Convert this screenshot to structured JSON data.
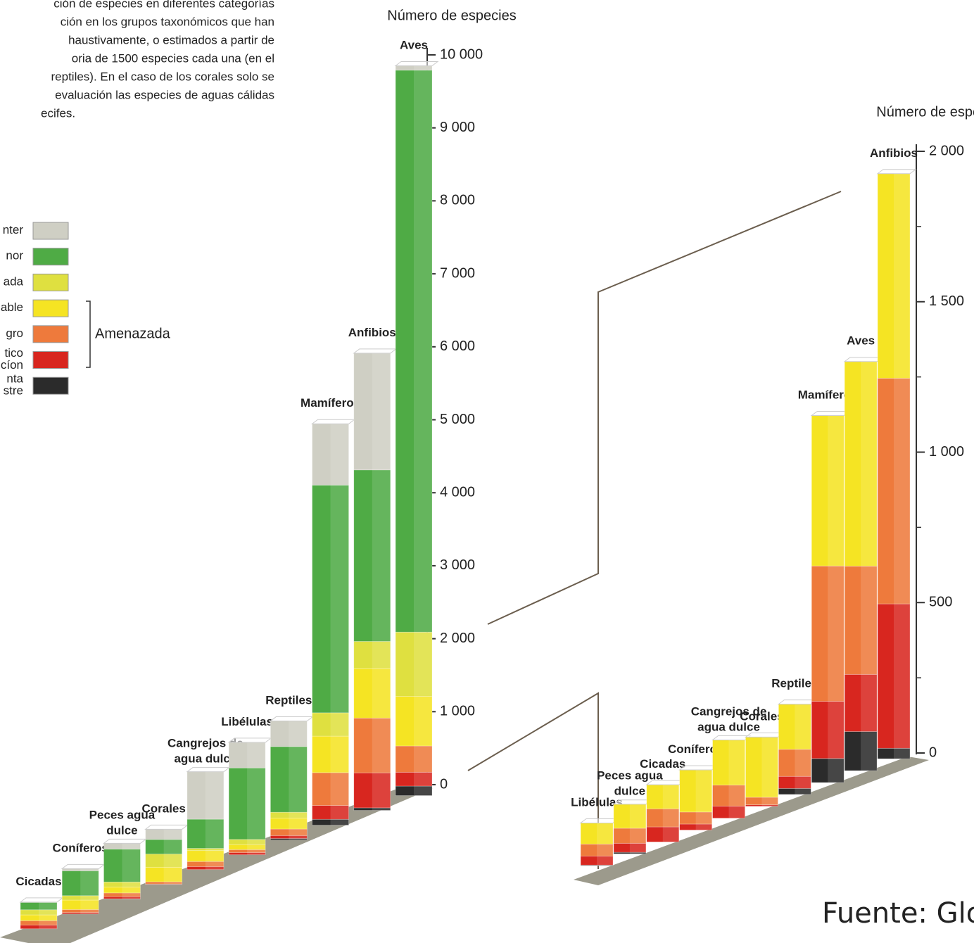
{
  "intro": [
    "ción de especies en diferentes categorías",
    "ción en los grupos taxonómicos que han",
    "haustivamente, o estimados a partir de",
    "oria de 1500 especies cada una (en el",
    "reptiles). En el caso de los corales solo se",
    "evaluación las especies de aguas cálidas",
    "ecifes."
  ],
  "bracket_label": "Amenazada",
  "source": "Fuente: Global",
  "chart_data": [
    {
      "type": "stacked-bar",
      "ylabel": "Número de especies",
      "categories": [
        "Cicadas",
        "Coníferos",
        "Peces agua dulce",
        "Corales",
        "Cangrejos de agua dulce",
        "Libélulas",
        "Reptiles",
        "Mamíferos",
        "Anfibios",
        "Aves"
      ],
      "series": [
        {
          "name": "nta stre",
          "color": "#2b2b2b",
          "values": [
            0,
            0,
            5,
            0,
            0,
            0,
            20,
            80,
            35,
            130
          ]
        },
        {
          "name": "tico cíon",
          "color": "#d8261f",
          "values": [
            50,
            20,
            30,
            5,
            40,
            30,
            40,
            190,
            480,
            190
          ]
        },
        {
          "name": "gro",
          "color": "#ee7a3c",
          "values": [
            60,
            40,
            50,
            30,
            70,
            40,
            90,
            450,
            750,
            360
          ]
        },
        {
          "name": "able",
          "color": "#f5e423",
          "values": [
            80,
            130,
            80,
            200,
            150,
            70,
            150,
            500,
            680,
            680
          ]
        },
        {
          "name": "ada",
          "color": "#dfe040",
          "values": [
            70,
            60,
            70,
            180,
            30,
            70,
            80,
            320,
            370,
            880
          ]
        },
        {
          "name": "nor",
          "color": "#4fab45",
          "values": [
            100,
            340,
            450,
            200,
            400,
            980,
            900,
            3120,
            2350,
            7700
          ]
        },
        {
          "name": "nter",
          "color": "#cfcfc4",
          "values": [
            5,
            30,
            80,
            140,
            650,
            350,
            350,
            840,
            1600,
            60
          ]
        }
      ],
      "ylim": [
        0,
        10000
      ],
      "yticks": [
        0,
        {
          "value": 1000,
          "label": "1 000"
        },
        {
          "value": 2000,
          "label": "2 000"
        },
        {
          "value": 3000,
          "label": "3 000"
        },
        {
          "value": 4000,
          "label": "4 000"
        },
        {
          "value": 5000,
          "label": "5 000"
        },
        {
          "value": 6000,
          "label": "6 000"
        },
        {
          "value": 7000,
          "label": "7 000"
        },
        {
          "value": 8000,
          "label": "8 000"
        },
        {
          "value": 9000,
          "label": "9 000"
        },
        {
          "value": 10000,
          "label": "10 000"
        }
      ],
      "legend": "left"
    },
    {
      "type": "stacked-bar",
      "ylabel": "Número de especies",
      "categories": [
        "Libélulas",
        "Peces agua dulce",
        "Cicadas",
        "Coníferos",
        "Cangrejos de agua dulce",
        "Corales",
        "Reptiles",
        "Mamíferos",
        "Aves",
        "Anfibios"
      ],
      "series": [
        {
          "color": "#2b2b2b",
          "values": [
            2,
            5,
            0,
            0,
            0,
            0,
            20,
            80,
            130,
            35
          ]
        },
        {
          "color": "#d8261f",
          "values": [
            30,
            30,
            50,
            20,
            40,
            5,
            40,
            190,
            190,
            480
          ]
        },
        {
          "color": "#ee7a3c",
          "values": [
            40,
            50,
            60,
            40,
            70,
            25,
            90,
            450,
            360,
            750
          ]
        },
        {
          "color": "#f5e423",
          "values": [
            70,
            80,
            80,
            140,
            150,
            200,
            150,
            500,
            680,
            680
          ]
        }
      ],
      "ylim": [
        0,
        2000
      ],
      "yticks": [
        0,
        500,
        {
          "value": 1000,
          "label": "1 000"
        },
        {
          "value": 1500,
          "label": "1 500"
        },
        {
          "value": 2000,
          "label": "2 000"
        }
      ]
    }
  ]
}
